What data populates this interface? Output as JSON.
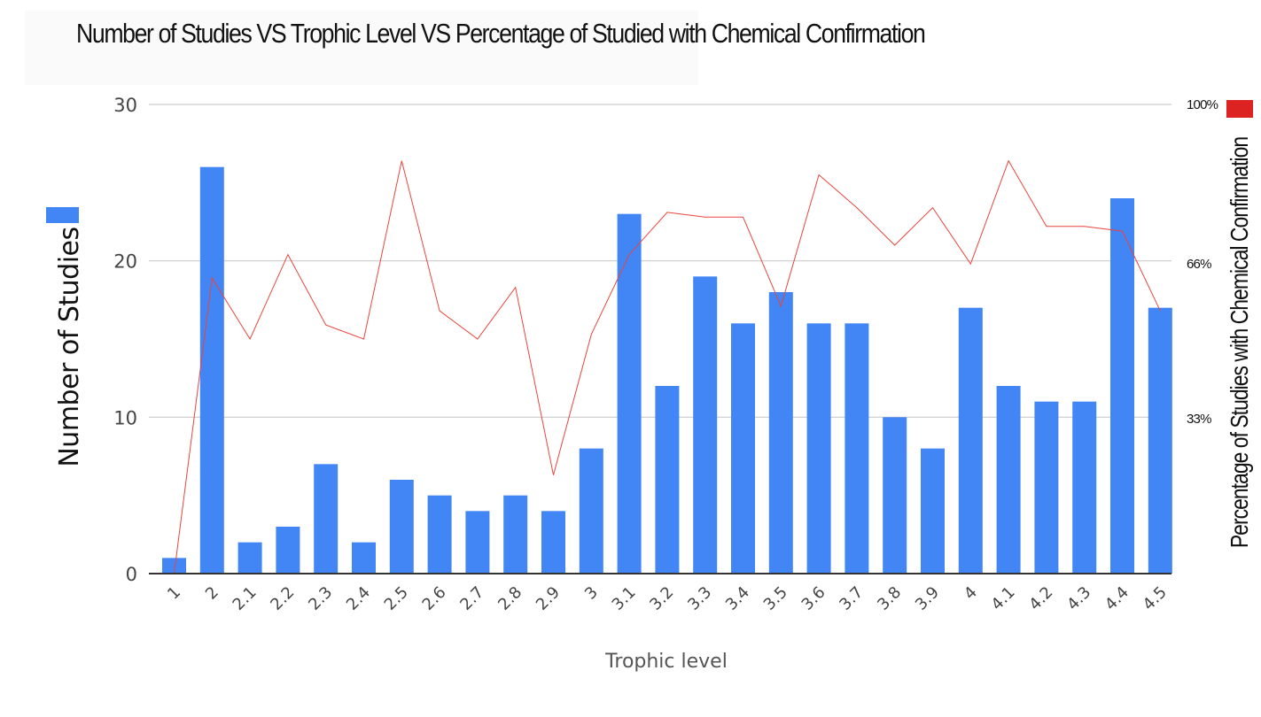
{
  "chart_data": {
    "type": "bar",
    "title": "Number of Studies VS Trophic Level VS Percentage of Studied with Chemical Confirmation",
    "xlabel": "Trophic level",
    "ylabel": "Number of Studies",
    "y2label": "Percentage of Studies with Chemical Confirmation",
    "categories": [
      "1",
      "2",
      "2.1",
      "2.2",
      "2.3",
      "2.4",
      "2.5",
      "2.6",
      "2.7",
      "2.8",
      "2.9",
      "3",
      "3.1",
      "3.2",
      "3.3",
      "3.4",
      "3.5",
      "3.6",
      "3.7",
      "3.8",
      "3.9",
      "4",
      "4.1",
      "4.2",
      "4.3",
      "4.4",
      "4.5"
    ],
    "ylim": [
      0,
      30
    ],
    "yticks": [
      0,
      10,
      20,
      30
    ],
    "y2lim": [
      0,
      100
    ],
    "y2ticks": [
      {
        "value": 33,
        "label": "33%"
      },
      {
        "value": 66,
        "label": "66%"
      },
      {
        "value": 100,
        "label": "100%"
      }
    ],
    "series": [
      {
        "kind": "bar",
        "axis": "left",
        "color": "#4285f4",
        "values": [
          1,
          26,
          2,
          3,
          7,
          2,
          6,
          5,
          4,
          5,
          4,
          8,
          23,
          12,
          19,
          16,
          18,
          16,
          16,
          10,
          8,
          17,
          12,
          11,
          11,
          24,
          17
        ]
      },
      {
        "kind": "line",
        "axis": "right",
        "color": "#e8453c",
        "values": [
          0,
          63,
          50,
          68,
          53,
          50,
          88,
          56,
          50,
          61,
          21,
          51,
          68,
          77,
          76,
          76,
          57,
          85,
          78,
          70,
          78,
          66,
          88,
          74,
          74,
          73,
          56
        ]
      }
    ],
    "legend": [
      {
        "for": "left",
        "color": "#4285f4",
        "placement": "left"
      },
      {
        "for": "right",
        "color": "#dd2222",
        "placement": "top-right"
      }
    ],
    "grid": true
  }
}
